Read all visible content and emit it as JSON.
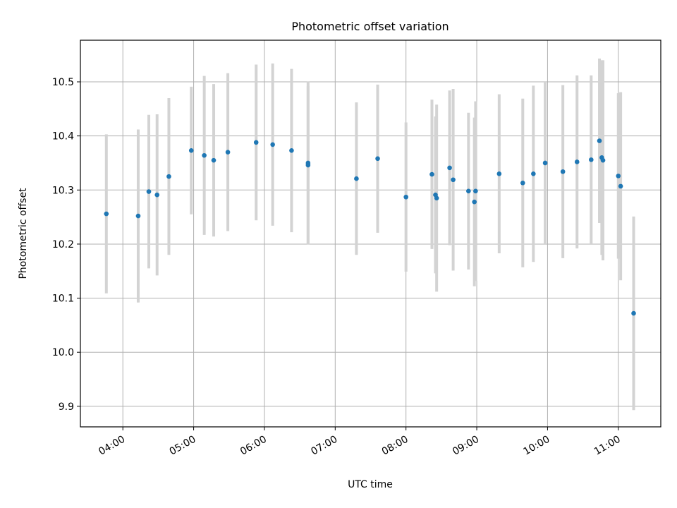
{
  "chart_data": {
    "type": "scatter",
    "title": "Photometric offset variation",
    "xlabel": "UTC time",
    "ylabel": "Photometric offset",
    "x_tick_labels": [
      "04:00",
      "05:00",
      "06:00",
      "07:00",
      "08:00",
      "09:00",
      "10:00",
      "11:00"
    ],
    "y_tick_labels": [
      "9.9",
      "10.0",
      "10.1",
      "10.2",
      "10.3",
      "10.4",
      "10.5"
    ],
    "y_ticks": [
      9.9,
      10.0,
      10.1,
      10.2,
      10.3,
      10.4,
      10.5
    ],
    "xlim": [
      "03:24",
      "11:36"
    ],
    "ylim": [
      9.862,
      10.577
    ],
    "grid": true,
    "point_color": "#1f77b4",
    "errorbar_color": "#d3d3d3",
    "points": [
      {
        "x": "03:46",
        "y": 10.256,
        "yerr": 0.147
      },
      {
        "x": "04:13",
        "y": 10.252,
        "yerr": 0.16
      },
      {
        "x": "04:22",
        "y": 10.297,
        "yerr": 0.142
      },
      {
        "x": "04:29",
        "y": 10.291,
        "yerr": 0.149
      },
      {
        "x": "04:39",
        "y": 10.325,
        "yerr": 0.145
      },
      {
        "x": "04:58",
        "y": 10.373,
        "yerr": 0.118
      },
      {
        "x": "05:09",
        "y": 10.364,
        "yerr": 0.147
      },
      {
        "x": "05:17",
        "y": 10.355,
        "yerr": 0.141
      },
      {
        "x": "05:29",
        "y": 10.37,
        "yerr": 0.146
      },
      {
        "x": "05:53",
        "y": 10.388,
        "yerr": 0.144
      },
      {
        "x": "06:07",
        "y": 10.384,
        "yerr": 0.15
      },
      {
        "x": "06:23",
        "y": 10.373,
        "yerr": 0.151
      },
      {
        "x": "06:37",
        "y": 10.35,
        "yerr": 0.151
      },
      {
        "x": "06:37",
        "y": 10.346,
        "yerr": 0.146
      },
      {
        "x": "07:18",
        "y": 10.321,
        "yerr": 0.141
      },
      {
        "x": "07:36",
        "y": 10.358,
        "yerr": 0.137
      },
      {
        "x": "08:00",
        "y": 10.287,
        "yerr": 0.138
      },
      {
        "x": "08:22",
        "y": 10.329,
        "yerr": 0.138
      },
      {
        "x": "08:25",
        "y": 10.291,
        "yerr": 0.145
      },
      {
        "x": "08:26",
        "y": 10.285,
        "yerr": 0.173
      },
      {
        "x": "08:37",
        "y": 10.341,
        "yerr": 0.143
      },
      {
        "x": "08:40",
        "y": 10.319,
        "yerr": 0.168
      },
      {
        "x": "08:53",
        "y": 10.298,
        "yerr": 0.145
      },
      {
        "x": "08:58",
        "y": 10.278,
        "yerr": 0.156
      },
      {
        "x": "08:59",
        "y": 10.298,
        "yerr": 0.166
      },
      {
        "x": "09:19",
        "y": 10.33,
        "yerr": 0.147
      },
      {
        "x": "09:39",
        "y": 10.313,
        "yerr": 0.156
      },
      {
        "x": "09:48",
        "y": 10.33,
        "yerr": 0.163
      },
      {
        "x": "09:58",
        "y": 10.35,
        "yerr": 0.15
      },
      {
        "x": "10:13",
        "y": 10.334,
        "yerr": 0.16
      },
      {
        "x": "10:25",
        "y": 10.352,
        "yerr": 0.16
      },
      {
        "x": "10:37",
        "y": 10.356,
        "yerr": 0.156
      },
      {
        "x": "10:44",
        "y": 10.391,
        "yerr": 0.152
      },
      {
        "x": "10:46",
        "y": 10.36,
        "yerr": 0.18
      },
      {
        "x": "10:47",
        "y": 10.355,
        "yerr": 0.185
      },
      {
        "x": "11:00",
        "y": 10.326,
        "yerr": 0.153
      },
      {
        "x": "11:02",
        "y": 10.307,
        "yerr": 0.174
      },
      {
        "x": "11:13",
        "y": 10.072,
        "yerr": 0.179
      }
    ]
  }
}
